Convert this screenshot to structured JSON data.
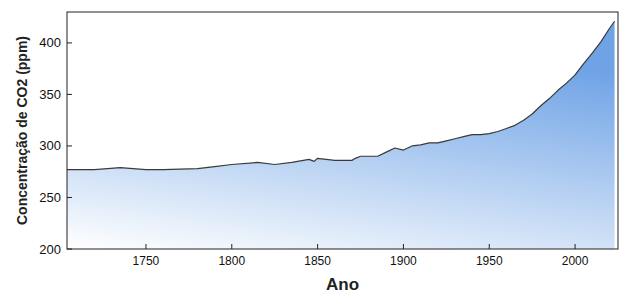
{
  "chart_data": {
    "type": "area",
    "x_label": "Ano",
    "y_label": "Concentração de CO2 (ppm)",
    "x": [
      1704,
      1720,
      1735,
      1750,
      1760,
      1780,
      1790,
      1800,
      1815,
      1825,
      1835,
      1845,
      1848,
      1850,
      1860,
      1870,
      1872,
      1875,
      1885,
      1890,
      1895,
      1900,
      1905,
      1910,
      1915,
      1920,
      1925,
      1930,
      1935,
      1940,
      1945,
      1950,
      1955,
      1960,
      1965,
      1970,
      1975,
      1980,
      1985,
      1990,
      1995,
      2000,
      2005,
      2010,
      2015,
      2020,
      2023
    ],
    "values": [
      277,
      277,
      279,
      277,
      277,
      278,
      280,
      282,
      284,
      282,
      284,
      287,
      285,
      288,
      286,
      286,
      288,
      290,
      290,
      294,
      298,
      296,
      300,
      301,
      303,
      303,
      305,
      307,
      309,
      311,
      311,
      312,
      314,
      317,
      320,
      325,
      331,
      339,
      346,
      354,
      361,
      369,
      380,
      390,
      401,
      414,
      421
    ],
    "color": "#6fa3e6",
    "xlim": [
      1704,
      2025
    ],
    "ylim": [
      200,
      430
    ],
    "xticks": [
      1750,
      1800,
      1850,
      1900,
      1950,
      2000
    ],
    "yticks": [
      200,
      250,
      300,
      350,
      400
    ],
    "grid": false
  }
}
